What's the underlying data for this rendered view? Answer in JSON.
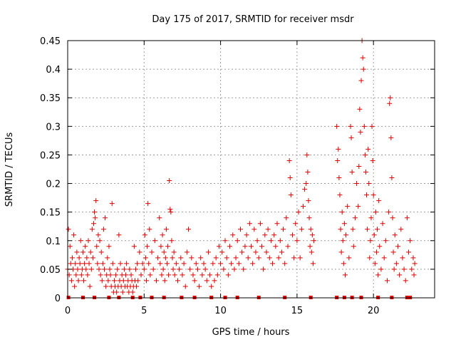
{
  "chart_data": {
    "type": "scatter",
    "title": "Day 175 of 2017, SRMTID for receiver msdr",
    "xlabel": "GPS time / hours",
    "ylabel": "SRMTID / TECUs",
    "xlim": [
      0,
      24
    ],
    "ylim": [
      0,
      0.45
    ],
    "xticks": [
      0,
      5,
      10,
      15,
      20
    ],
    "xtick_labels": [
      "0",
      "5",
      "10",
      "15",
      "20"
    ],
    "yticks": [
      0,
      0.05,
      0.1,
      0.15,
      0.2,
      0.25,
      0.3,
      0.35,
      0.4,
      0.45
    ],
    "ytick_labels": [
      "0",
      "0.05",
      "0.1",
      "0.15",
      "0.2",
      "0.25",
      "0.3",
      "0.35",
      "0.4",
      "0.45"
    ],
    "grid": true,
    "marker": "+",
    "color": "#e00000",
    "series": [
      {
        "name": "SRMTID",
        "points": [
          [
            0.0,
            0.05
          ],
          [
            0.05,
            0.12
          ],
          [
            0.1,
            0.04
          ],
          [
            0.15,
            0.09
          ],
          [
            0.2,
            0.06
          ],
          [
            0.25,
            0.03
          ],
          [
            0.3,
            0.07
          ],
          [
            0.35,
            0.05
          ],
          [
            0.4,
            0.11
          ],
          [
            0.45,
            0.02
          ],
          [
            0.5,
            0.06
          ],
          [
            0.55,
            0.04
          ],
          [
            0.6,
            0.08
          ],
          [
            0.65,
            0.05
          ],
          [
            0.7,
            0.03
          ],
          [
            0.75,
            0.07
          ],
          [
            0.8,
            0.06
          ],
          [
            0.85,
            0.1
          ],
          [
            0.9,
            0.04
          ],
          [
            0.95,
            0.05
          ],
          [
            1.0,
            0.08
          ],
          [
            1.05,
            0.03
          ],
          [
            1.1,
            0.06
          ],
          [
            1.15,
            0.09
          ],
          [
            1.2,
            0.05
          ],
          [
            1.25,
            0.07
          ],
          [
            1.3,
            0.04
          ],
          [
            1.35,
            0.1
          ],
          [
            1.4,
            0.06
          ],
          [
            1.45,
            0.02
          ],
          [
            1.5,
            0.08
          ],
          [
            1.55,
            0.05
          ],
          [
            1.6,
            0.12
          ],
          [
            1.65,
            0.07
          ],
          [
            1.7,
            0.13
          ],
          [
            1.75,
            0.15
          ],
          [
            1.8,
            0.14
          ],
          [
            1.85,
            0.17
          ],
          [
            1.9,
            0.09
          ],
          [
            1.95,
            0.06
          ],
          [
            2.0,
            0.11
          ],
          [
            2.05,
            0.05
          ],
          [
            2.1,
            0.1
          ],
          [
            2.15,
            0.04
          ],
          [
            2.2,
            0.08
          ],
          [
            2.25,
            0.03
          ],
          [
            2.3,
            0.06
          ],
          [
            2.35,
            0.12
          ],
          [
            2.4,
            0.05
          ],
          [
            2.45,
            0.14
          ],
          [
            2.5,
            0.02
          ],
          [
            2.55,
            0.04
          ],
          [
            2.6,
            0.07
          ],
          [
            2.65,
            0.03
          ],
          [
            2.7,
            0.09
          ],
          [
            2.75,
            0.05
          ],
          [
            2.8,
            0.04
          ],
          [
            2.85,
            0.02
          ],
          [
            2.9,
            0.165
          ],
          [
            2.95,
            0.06
          ],
          [
            3.0,
            0.01
          ],
          [
            3.05,
            0.03
          ],
          [
            3.1,
            0.02
          ],
          [
            3.15,
            0.04
          ],
          [
            3.2,
            0.01
          ],
          [
            3.25,
            0.05
          ],
          [
            3.3,
            0.02
          ],
          [
            3.35,
            0.11
          ],
          [
            3.4,
            0.03
          ],
          [
            3.45,
            0.06
          ],
          [
            3.5,
            0.02
          ],
          [
            3.55,
            0.04
          ],
          [
            3.6,
            0.01
          ],
          [
            3.65,
            0.03
          ],
          [
            3.7,
            0.05
          ],
          [
            3.75,
            0.02
          ],
          [
            3.8,
            0.04
          ],
          [
            3.85,
            0.06
          ],
          [
            3.9,
            0.02
          ],
          [
            3.95,
            0.03
          ],
          [
            4.0,
            0.01
          ],
          [
            4.05,
            0.05
          ],
          [
            4.1,
            0.02
          ],
          [
            4.15,
            0.04
          ],
          [
            4.2,
            0.03
          ],
          [
            4.25,
            0.01
          ],
          [
            4.3,
            0.02
          ],
          [
            4.35,
            0.09
          ],
          [
            4.4,
            0.03
          ],
          [
            4.45,
            0.05
          ],
          [
            4.5,
            0.02
          ],
          [
            4.55,
            0.06
          ],
          [
            4.6,
            0.03
          ],
          [
            4.7,
            0.08
          ],
          [
            4.8,
            0.04
          ],
          [
            4.9,
            0.06
          ],
          [
            5.0,
            0.05
          ],
          [
            5.05,
            0.11
          ],
          [
            5.1,
            0.07
          ],
          [
            5.15,
            0.03
          ],
          [
            5.2,
            0.09
          ],
          [
            5.25,
            0.165
          ],
          [
            5.3,
            0.06
          ],
          [
            5.35,
            0.12
          ],
          [
            5.4,
            0.04
          ],
          [
            5.5,
            0.08
          ],
          [
            5.6,
            0.05
          ],
          [
            5.7,
            0.1
          ],
          [
            5.8,
            0.03
          ],
          [
            5.9,
            0.07
          ],
          [
            6.0,
            0.14
          ],
          [
            6.05,
            0.06
          ],
          [
            6.1,
            0.09
          ],
          [
            6.15,
            0.04
          ],
          [
            6.2,
            0.11
          ],
          [
            6.25,
            0.05
          ],
          [
            6.3,
            0.08
          ],
          [
            6.35,
            0.03
          ],
          [
            6.4,
            0.07
          ],
          [
            6.45,
            0.12
          ],
          [
            6.5,
            0.06
          ],
          [
            6.55,
            0.09
          ],
          [
            6.6,
            0.04
          ],
          [
            6.65,
            0.205
          ],
          [
            6.7,
            0.155
          ],
          [
            6.75,
            0.15
          ],
          [
            6.8,
            0.1
          ],
          [
            6.85,
            0.07
          ],
          [
            6.9,
            0.05
          ],
          [
            6.95,
            0.08
          ],
          [
            7.0,
            0.04
          ],
          [
            7.1,
            0.06
          ],
          [
            7.2,
            0.03
          ],
          [
            7.3,
            0.05
          ],
          [
            7.4,
            0.07
          ],
          [
            7.5,
            0.04
          ],
          [
            7.6,
            0.06
          ],
          [
            7.7,
            0.02
          ],
          [
            7.8,
            0.08
          ],
          [
            7.9,
            0.12
          ],
          [
            8.0,
            0.05
          ],
          [
            8.1,
            0.07
          ],
          [
            8.2,
            0.04
          ],
          [
            8.3,
            0.03
          ],
          [
            8.4,
            0.06
          ],
          [
            8.5,
            0.05
          ],
          [
            8.6,
            0.02
          ],
          [
            8.7,
            0.07
          ],
          [
            8.8,
            0.04
          ],
          [
            8.9,
            0.06
          ],
          [
            9.0,
            0.05
          ],
          [
            9.1,
            0.03
          ],
          [
            9.2,
            0.08
          ],
          [
            9.3,
            0.04
          ],
          [
            9.4,
            0.02
          ],
          [
            9.5,
            0.06
          ],
          [
            9.6,
            0.03
          ],
          [
            9.7,
            0.07
          ],
          [
            9.8,
            0.04
          ],
          [
            9.9,
            0.09
          ],
          [
            10.0,
            0.06
          ],
          [
            10.1,
            0.08
          ],
          [
            10.2,
            0.05
          ],
          [
            10.3,
            0.1
          ],
          [
            10.4,
            0.07
          ],
          [
            10.5,
            0.04
          ],
          [
            10.6,
            0.09
          ],
          [
            10.7,
            0.06
          ],
          [
            10.8,
            0.11
          ],
          [
            10.9,
            0.05
          ],
          [
            11.0,
            0.07
          ],
          [
            11.1,
            0.1
          ],
          [
            11.2,
            0.06
          ],
          [
            11.3,
            0.12
          ],
          [
            11.4,
            0.08
          ],
          [
            11.5,
            0.05
          ],
          [
            11.6,
            0.09
          ],
          [
            11.7,
            0.11
          ],
          [
            11.8,
            0.07
          ],
          [
            11.9,
            0.13
          ],
          [
            12.0,
            0.09
          ],
          [
            12.1,
            0.06
          ],
          [
            12.2,
            0.12
          ],
          [
            12.3,
            0.08
          ],
          [
            12.4,
            0.1
          ],
          [
            12.5,
            0.07
          ],
          [
            12.6,
            0.13
          ],
          [
            12.7,
            0.09
          ],
          [
            12.8,
            0.05
          ],
          [
            12.9,
            0.11
          ],
          [
            13.0,
            0.08
          ],
          [
            13.1,
            0.12
          ],
          [
            13.2,
            0.07
          ],
          [
            13.3,
            0.1
          ],
          [
            13.4,
            0.06
          ],
          [
            13.5,
            0.11
          ],
          [
            13.6,
            0.09
          ],
          [
            13.7,
            0.13
          ],
          [
            13.8,
            0.07
          ],
          [
            13.9,
            0.1
          ],
          [
            14.0,
            0.08
          ],
          [
            14.1,
            0.12
          ],
          [
            14.2,
            0.06
          ],
          [
            14.3,
            0.14
          ],
          [
            14.4,
            0.09
          ],
          [
            14.5,
            0.24
          ],
          [
            14.55,
            0.21
          ],
          [
            14.6,
            0.18
          ],
          [
            14.7,
            0.11
          ],
          [
            14.8,
            0.07
          ],
          [
            14.9,
            0.13
          ],
          [
            15.0,
            0.1
          ],
          [
            15.1,
            0.15
          ],
          [
            15.2,
            0.07
          ],
          [
            15.3,
            0.12
          ],
          [
            15.4,
            0.16
          ],
          [
            15.5,
            0.19
          ],
          [
            15.6,
            0.2
          ],
          [
            15.65,
            0.25
          ],
          [
            15.7,
            0.22
          ],
          [
            15.75,
            0.17
          ],
          [
            15.8,
            0.14
          ],
          [
            15.85,
            0.09
          ],
          [
            15.9,
            0.12
          ],
          [
            15.95,
            0.08
          ],
          [
            16.0,
            0.11
          ],
          [
            16.05,
            0.06
          ],
          [
            16.1,
            0.1
          ],
          [
            17.6,
            0.3
          ],
          [
            17.65,
            0.24
          ],
          [
            17.7,
            0.26
          ],
          [
            17.75,
            0.21
          ],
          [
            17.8,
            0.18
          ],
          [
            17.85,
            0.12
          ],
          [
            17.9,
            0.08
          ],
          [
            17.95,
            0.15
          ],
          [
            18.0,
            0.1
          ],
          [
            18.05,
            0.06
          ],
          [
            18.1,
            0.13
          ],
          [
            18.15,
            0.04
          ],
          [
            18.2,
            0.11
          ],
          [
            18.3,
            0.16
          ],
          [
            18.4,
            0.07
          ],
          [
            18.5,
            0.3
          ],
          [
            18.55,
            0.28
          ],
          [
            18.6,
            0.22
          ],
          [
            18.65,
            0.12
          ],
          [
            18.7,
            0.09
          ],
          [
            18.8,
            0.14
          ],
          [
            18.9,
            0.2
          ],
          [
            19.0,
            0.16
          ],
          [
            19.05,
            0.23
          ],
          [
            19.1,
            0.33
          ],
          [
            19.15,
            0.29
          ],
          [
            19.2,
            0.38
          ],
          [
            19.25,
            0.45
          ],
          [
            19.3,
            0.42
          ],
          [
            19.35,
            0.4
          ],
          [
            19.4,
            0.3
          ],
          [
            19.45,
            0.25
          ],
          [
            19.5,
            0.22
          ],
          [
            19.55,
            0.18
          ],
          [
            19.6,
            0.12
          ],
          [
            19.65,
            0.26
          ],
          [
            19.7,
            0.2
          ],
          [
            19.75,
            0.07
          ],
          [
            19.8,
            0.1
          ],
          [
            19.85,
            0.14
          ],
          [
            19.9,
            0.3
          ],
          [
            19.95,
            0.24
          ],
          [
            20.0,
            0.18
          ],
          [
            20.05,
            0.11
          ],
          [
            20.1,
            0.06
          ],
          [
            20.15,
            0.15
          ],
          [
            20.2,
            0.08
          ],
          [
            20.25,
            0.12
          ],
          [
            20.3,
            0.04
          ],
          [
            20.35,
            0.17
          ],
          [
            20.4,
            0.09
          ],
          [
            20.5,
            0.05
          ],
          [
            20.6,
            0.13
          ],
          [
            20.7,
            0.07
          ],
          [
            20.8,
            0.1
          ],
          [
            20.9,
            0.03
          ],
          [
            21.0,
            0.15
          ],
          [
            21.05,
            0.34
          ],
          [
            21.1,
            0.35
          ],
          [
            21.15,
            0.28
          ],
          [
            21.2,
            0.21
          ],
          [
            21.25,
            0.14
          ],
          [
            21.3,
            0.08
          ],
          [
            21.35,
            0.05
          ],
          [
            21.4,
            0.11
          ],
          [
            21.5,
            0.06
          ],
          [
            21.6,
            0.09
          ],
          [
            21.7,
            0.04
          ],
          [
            21.8,
            0.12
          ],
          [
            21.9,
            0.07
          ],
          [
            22.0,
            0.05
          ],
          [
            22.1,
            0.03
          ],
          [
            22.2,
            0.14
          ],
          [
            22.3,
            0.08
          ],
          [
            22.4,
            0.1
          ],
          [
            22.5,
            0.05
          ],
          [
            22.6,
            0.07
          ],
          [
            22.65,
            0.04
          ],
          [
            22.7,
            0.06
          ]
        ]
      }
    ],
    "zero_points": [
      0.05,
      1.0,
      1.75,
      2.7,
      3.35,
      4.25,
      4.75,
      5.5,
      6.3,
      7.45,
      8.3,
      9.4,
      10.3,
      11.1,
      12.5,
      14.2,
      15.9,
      17.6,
      18.1,
      18.6,
      19.2,
      20.3,
      21.2,
      22.2,
      22.4
    ]
  }
}
